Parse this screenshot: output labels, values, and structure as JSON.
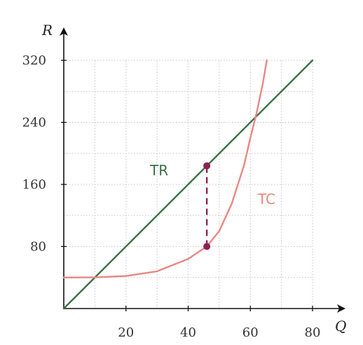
{
  "chart_data": {
    "type": "line",
    "xlabel": "Q",
    "ylabel": "R",
    "xlim": [
      0,
      80
    ],
    "ylim": [
      0,
      320
    ],
    "xticks": [
      20,
      40,
      60,
      80
    ],
    "yticks": [
      80,
      160,
      240,
      320
    ],
    "grid": true,
    "series": [
      {
        "name": "TR",
        "color": "#3a7049",
        "points": [
          [
            0,
            0
          ],
          [
            80,
            320
          ]
        ]
      },
      {
        "name": "TC",
        "color": "#e88882",
        "points": [
          [
            0,
            40
          ],
          [
            10,
            40.2
          ],
          [
            20,
            42
          ],
          [
            30,
            48
          ],
          [
            40,
            64
          ],
          [
            46,
            80
          ],
          [
            50,
            100
          ],
          [
            54,
            135
          ],
          [
            58,
            185
          ],
          [
            60,
            220
          ],
          [
            62,
            252
          ],
          [
            64,
            290
          ],
          [
            65.3,
            320
          ]
        ]
      }
    ],
    "annotations": [
      {
        "type": "dashed-segment",
        "x": 46,
        "y_from": 80,
        "y_to": 184,
        "color": "#8b2252"
      }
    ]
  }
}
